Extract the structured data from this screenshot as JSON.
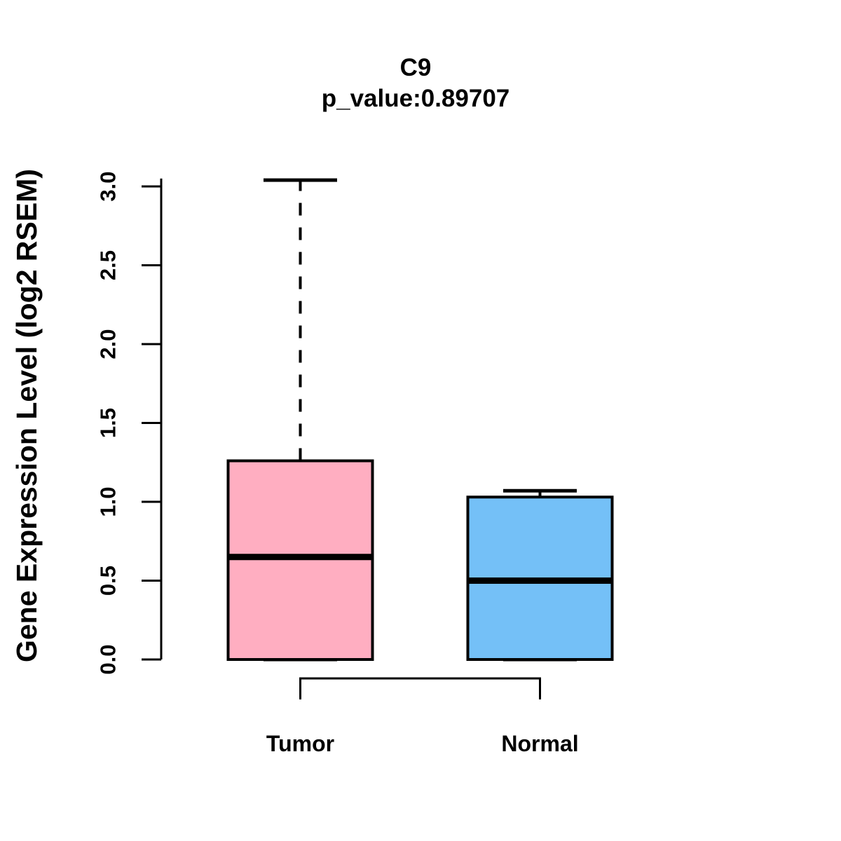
{
  "chart_data": {
    "type": "boxplot",
    "title": "C9",
    "subtitle": "p_value:0.89707",
    "ylabel": "Gene Expression Level (log2 RSEM)",
    "xlabel": "",
    "ylim": [
      0.0,
      3.05
    ],
    "yticks": [
      "0.0",
      "0.5",
      "1.0",
      "1.5",
      "2.0",
      "2.5",
      "3.0"
    ],
    "grid": false,
    "legend": "none",
    "categories": [
      "Tumor",
      "Normal"
    ],
    "series": [
      {
        "name": "Tumor",
        "color": "#FFAEC1",
        "min": 0.0,
        "q1": 0.0,
        "median": 0.65,
        "q3": 1.26,
        "max": 3.04,
        "upper_whisker_dashed": true
      },
      {
        "name": "Normal",
        "color": "#74C0F7",
        "min": 0.0,
        "q1": 0.0,
        "median": 0.5,
        "q3": 1.03,
        "max": 1.07,
        "upper_whisker_dashed": false
      }
    ],
    "comparison_bracket": {
      "from": "Tumor",
      "to": "Normal"
    },
    "colors": {
      "tumor_fill": "#FFAEC1",
      "normal_fill": "#74C0F7",
      "line": "#000000",
      "background": "#FFFFFF"
    }
  }
}
